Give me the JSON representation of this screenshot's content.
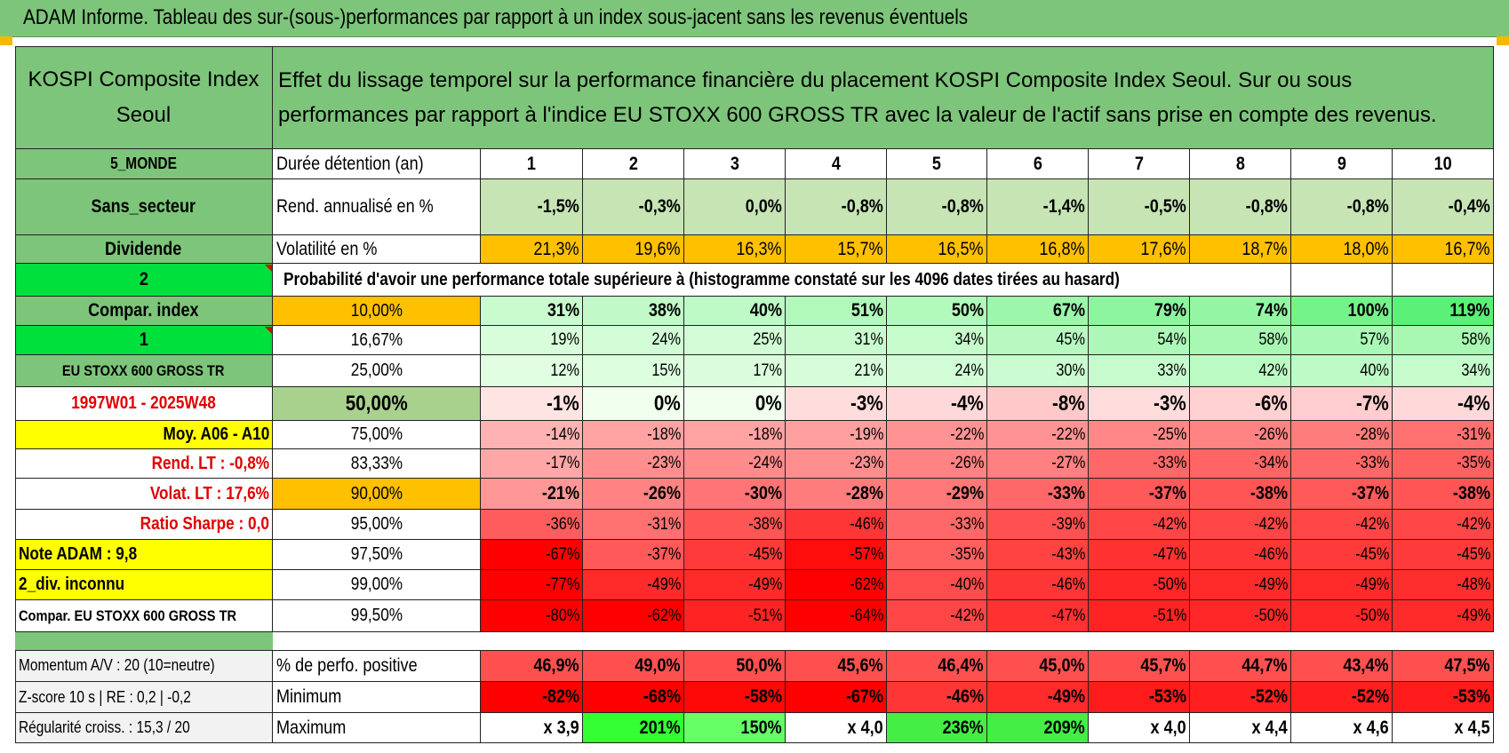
{
  "banner_title": "ADAM Informe. Tableau des sur-(sous-)performances par rapport à un index sous-jacent sans les revenus éventuels",
  "header": {
    "fund_name": "KOSPI Composite Index Seoul",
    "description": "Effet du lissage temporel sur la performance financière du placement KOSPI Composite Index Seoul. Sur ou sous performances par rapport à l'indice EU STOXX 600 GROSS TR avec la valeur de l'actif sans prise en compte des revenus."
  },
  "left_labels": {
    "zone": "5_MONDE",
    "sector": "Sans_secteur",
    "dividend": "Dividende",
    "value_2": "2",
    "compar_index": "Compar. index",
    "value_1": "1",
    "benchmark": "EU STOXX 600 GROSS TR",
    "period": "1997W01 - 2025W48",
    "moy": "Moy. A06 - A10",
    "rend_lt": "Rend. LT :    -0,8%",
    "volat_lt": "Volat. LT :    17,6%",
    "sharpe": "Ratio Sharpe :     0,0",
    "note": "Note ADAM : 9,8",
    "div": "2_div. inconnu",
    "compar_bench": "Compar. EU STOXX 600 GROSS TR"
  },
  "years_label": "Durée détention (an)",
  "years": [
    "1",
    "2",
    "3",
    "4",
    "5",
    "6",
    "7",
    "8",
    "9",
    "10"
  ],
  "rend_label": "Rend. annualisé en %",
  "rend": [
    "-1,5%",
    "-0,3%",
    "0,0%",
    "-0,8%",
    "-0,8%",
    "-1,4%",
    "-0,5%",
    "-0,8%",
    "-0,8%",
    "-0,4%"
  ],
  "vol_label": "Volatilité en %",
  "vol": [
    "21,3%",
    "19,6%",
    "16,3%",
    "15,7%",
    "16,5%",
    "16,8%",
    "17,6%",
    "18,7%",
    "18,0%",
    "16,7%"
  ],
  "prob_title": "Probabilité d'avoir une performance totale supérieure à (histogramme constaté sur les 4096 dates tirées au hasard)",
  "quantiles": [
    {
      "label": "10,00%",
      "values": [
        "31%",
        "38%",
        "40%",
        "51%",
        "50%",
        "67%",
        "79%",
        "74%",
        "100%",
        "119%"
      ]
    },
    {
      "label": "16,67%",
      "values": [
        "19%",
        "24%",
        "25%",
        "31%",
        "34%",
        "45%",
        "54%",
        "58%",
        "57%",
        "58%"
      ]
    },
    {
      "label": "25,00%",
      "values": [
        "12%",
        "15%",
        "17%",
        "21%",
        "24%",
        "30%",
        "33%",
        "42%",
        "40%",
        "34%"
      ]
    },
    {
      "label": "50,00%",
      "values": [
        "-1%",
        "0%",
        "0%",
        "-3%",
        "-4%",
        "-8%",
        "-3%",
        "-6%",
        "-7%",
        "-4%"
      ]
    },
    {
      "label": "75,00%",
      "values": [
        "-14%",
        "-18%",
        "-18%",
        "-19%",
        "-22%",
        "-22%",
        "-25%",
        "-26%",
        "-28%",
        "-31%"
      ]
    },
    {
      "label": "83,33%",
      "values": [
        "-17%",
        "-23%",
        "-24%",
        "-23%",
        "-26%",
        "-27%",
        "-33%",
        "-34%",
        "-33%",
        "-35%"
      ]
    },
    {
      "label": "90,00%",
      "values": [
        "-21%",
        "-26%",
        "-30%",
        "-28%",
        "-29%",
        "-33%",
        "-37%",
        "-38%",
        "-37%",
        "-38%"
      ]
    },
    {
      "label": "95,00%",
      "values": [
        "-36%",
        "-31%",
        "-38%",
        "-46%",
        "-33%",
        "-39%",
        "-42%",
        "-42%",
        "-42%",
        "-42%"
      ]
    },
    {
      "label": "97,50%",
      "values": [
        "-67%",
        "-37%",
        "-45%",
        "-57%",
        "-35%",
        "-43%",
        "-47%",
        "-46%",
        "-45%",
        "-45%"
      ]
    },
    {
      "label": "99,00%",
      "values": [
        "-77%",
        "-49%",
        "-49%",
        "-62%",
        "-40%",
        "-46%",
        "-50%",
        "-49%",
        "-49%",
        "-48%"
      ]
    },
    {
      "label": "99,50%",
      "values": [
        "-80%",
        "-62%",
        "-51%",
        "-64%",
        "-42%",
        "-47%",
        "-51%",
        "-50%",
        "-50%",
        "-49%"
      ]
    }
  ],
  "bottom": [
    {
      "left": "Momentum A/V : 20 (10=neutre)",
      "label": "% de perfo. positive",
      "values": [
        "46,9%",
        "49,0%",
        "50,0%",
        "45,6%",
        "46,4%",
        "45,0%",
        "45,7%",
        "44,7%",
        "43,4%",
        "47,5%"
      ]
    },
    {
      "left": "Z-score 10 s | RE : 0,2 | -0,2",
      "label": "Minimum",
      "values": [
        "-82%",
        "-68%",
        "-58%",
        "-67%",
        "-46%",
        "-49%",
        "-53%",
        "-52%",
        "-52%",
        "-53%"
      ]
    },
    {
      "left": "Régularité croiss. : 15,3 / 20",
      "label": "Maximum",
      "values": [
        "x 3,9",
        "201%",
        "150%",
        "x 4,0",
        "236%",
        "209%",
        "x 4,0",
        "x 4,4",
        "x 4,6",
        "x 4,5"
      ]
    }
  ],
  "colors": {
    "header_green": "#7dc57a",
    "bright_green": "#00e03c",
    "yellow": "#ffff00",
    "orange": "#ffc000",
    "pale_green": "#c6e4b4",
    "median_green": "#a9d18e",
    "red_text": "#e00000",
    "grey": "#f2f2f2"
  }
}
